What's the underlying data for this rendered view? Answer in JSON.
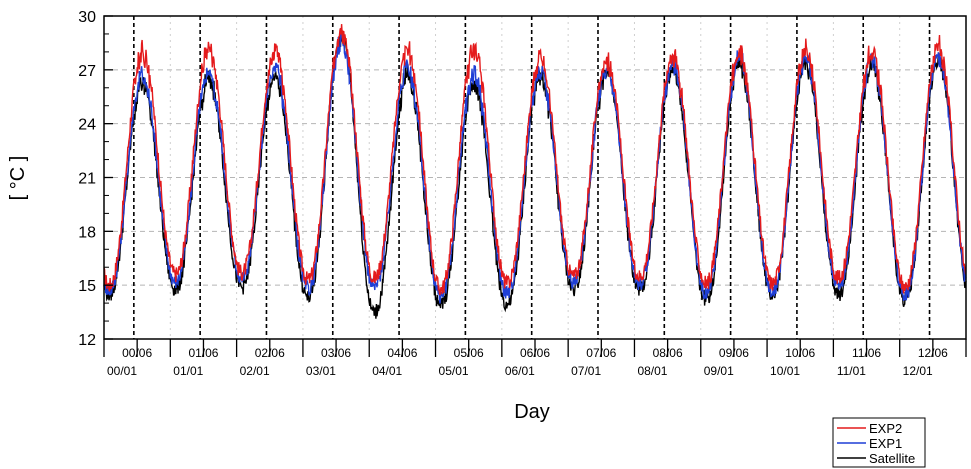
{
  "chart_data": {
    "type": "line",
    "title": "",
    "xlabel": "Day",
    "ylabel": "[ °C ]",
    "ylim": [
      12,
      30
    ],
    "yticks": [
      12,
      15,
      18,
      21,
      24,
      27,
      30
    ],
    "x_axis": {
      "units": "years since start (YY/MM labels)",
      "xlim": [
        0,
        13
      ],
      "ticks_row1": [
        {
          "x": 0.5,
          "label": "00/06"
        },
        {
          "x": 1.5,
          "label": "01/06"
        },
        {
          "x": 2.5,
          "label": "02/06"
        },
        {
          "x": 3.5,
          "label": "03/06"
        },
        {
          "x": 4.5,
          "label": "04/06"
        },
        {
          "x": 5.5,
          "label": "05/06"
        },
        {
          "x": 6.5,
          "label": "06/06"
        },
        {
          "x": 7.5,
          "label": "07/06"
        },
        {
          "x": 8.5,
          "label": "08/06"
        },
        {
          "x": 9.5,
          "label": "09/06"
        },
        {
          "x": 10.5,
          "label": "10/06"
        },
        {
          "x": 11.5,
          "label": "11/06"
        },
        {
          "x": 12.5,
          "label": "12/06"
        }
      ],
      "ticks_row2": [
        {
          "x": 0,
          "label": "00/01"
        },
        {
          "x": 1,
          "label": "01/01"
        },
        {
          "x": 2,
          "label": "02/01"
        },
        {
          "x": 3,
          "label": "03/01"
        },
        {
          "x": 4,
          "label": "04/01"
        },
        {
          "x": 5,
          "label": "05/01"
        },
        {
          "x": 6,
          "label": "06/01"
        },
        {
          "x": 7,
          "label": "07/01"
        },
        {
          "x": 8,
          "label": "08/01"
        },
        {
          "x": 9,
          "label": "09/01"
        },
        {
          "x": 10,
          "label": "10/01"
        },
        {
          "x": 11,
          "label": "11/01"
        },
        {
          "x": 12,
          "label": "12/01"
        }
      ]
    },
    "vertical_dashed_lines_x": [
      0.45,
      1.45,
      2.45,
      3.45,
      4.45,
      5.45,
      6.45,
      7.45,
      8.45,
      9.45,
      10.45,
      11.45,
      12.45
    ],
    "grid": true,
    "legend_position": "bottom-right",
    "series": [
      {
        "name": "EXP2",
        "color": "#e41a1c",
        "summer_peaks": [
          28.3,
          28.4,
          28.3,
          29.4,
          28.4,
          28.4,
          27.9,
          27.9,
          28.0,
          28.3,
          28.4,
          28.3,
          28.6
        ],
        "winter_mins": [
          15.0,
          15.6,
          15.7,
          15.3,
          15.4,
          14.8,
          15.1,
          15.5,
          15.5,
          15.1,
          15.1,
          15.4,
          14.9
        ]
      },
      {
        "name": "EXP1",
        "color": "#1f3fd6",
        "summer_peaks": [
          27.0,
          27.2,
          27.4,
          29.0,
          27.4,
          27.0,
          27.3,
          27.4,
          27.7,
          28.0,
          27.9,
          27.9,
          28.0
        ],
        "winter_mins": [
          14.7,
          15.2,
          15.4,
          14.8,
          14.9,
          14.4,
          14.6,
          15.2,
          15.1,
          14.6,
          14.7,
          14.9,
          14.5
        ]
      },
      {
        "name": "Satellite",
        "color": "#000000",
        "summer_peaks": [
          26.5,
          26.8,
          27.0,
          29.3,
          27.0,
          26.5,
          27.0,
          27.2,
          27.4,
          27.7,
          27.6,
          27.6,
          27.9
        ],
        "winter_mins": [
          14.5,
          14.8,
          14.9,
          14.3,
          13.5,
          13.9,
          13.9,
          14.8,
          14.7,
          14.2,
          14.4,
          14.5,
          14.2
        ]
      }
    ]
  }
}
